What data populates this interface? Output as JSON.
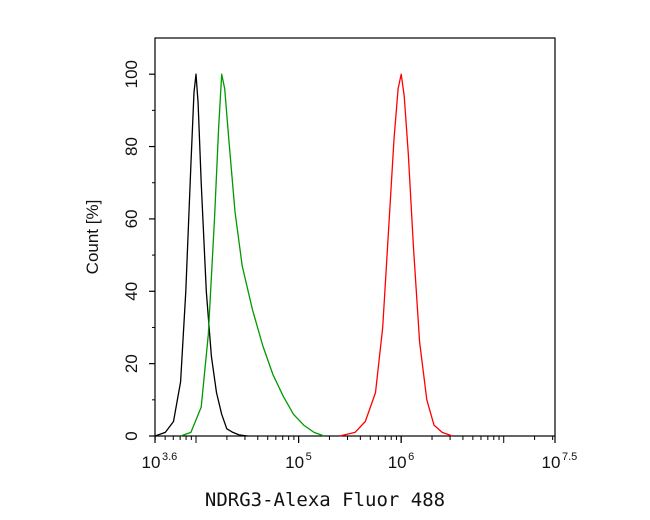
{
  "chart_data": {
    "type": "line",
    "xlabel": "NDRG3-Alexa Fluor 488",
    "ylabel": "Count [%]",
    "x_scale": "log",
    "xlim_log10": [
      3.6,
      7.5
    ],
    "ylim": [
      0,
      110
    ],
    "x_ticks": [
      {
        "base": "10",
        "exp": "3.6",
        "value_log10": 3.6
      },
      {
        "base": "10",
        "exp": "5",
        "value_log10": 5
      },
      {
        "base": "10",
        "exp": "6",
        "value_log10": 6
      },
      {
        "base": "10",
        "exp": "7.5",
        "value_log10": 7.5
      }
    ],
    "y_ticks": [
      "0",
      "20",
      "40",
      "60",
      "80",
      "100"
    ],
    "y_tick_values": [
      0,
      20,
      40,
      60,
      80,
      100
    ],
    "grid": false,
    "legend": "none",
    "series": [
      {
        "color": "#000000",
        "x_log10": [
          3.6,
          3.7,
          3.78,
          3.85,
          3.9,
          3.95,
          3.98,
          4.0,
          4.02,
          4.05,
          4.1,
          4.15,
          4.2,
          4.25,
          4.3,
          4.36,
          4.42,
          4.5
        ],
        "y": [
          0,
          1,
          4,
          15,
          40,
          75,
          95,
          100,
          92,
          70,
          40,
          22,
          12,
          6,
          2,
          1,
          0.3,
          0
        ]
      },
      {
        "color": "#009900",
        "x_log10": [
          3.85,
          3.95,
          4.05,
          4.12,
          4.18,
          4.22,
          4.25,
          4.28,
          4.32,
          4.38,
          4.45,
          4.55,
          4.65,
          4.75,
          4.85,
          4.95,
          5.05,
          5.15,
          5.25
        ],
        "y": [
          0,
          1,
          8,
          28,
          60,
          85,
          100,
          96,
          82,
          62,
          47,
          35,
          25,
          17,
          11,
          6,
          3,
          1,
          0
        ]
      },
      {
        "color": "#ff0000",
        "x_log10": [
          5.4,
          5.55,
          5.65,
          5.75,
          5.82,
          5.88,
          5.93,
          5.97,
          6.0,
          6.03,
          6.07,
          6.12,
          6.18,
          6.25,
          6.32,
          6.4,
          6.5
        ],
        "y": [
          0,
          1,
          4,
          12,
          30,
          58,
          82,
          96,
          100,
          94,
          78,
          52,
          26,
          10,
          3,
          1,
          0
        ]
      }
    ]
  }
}
